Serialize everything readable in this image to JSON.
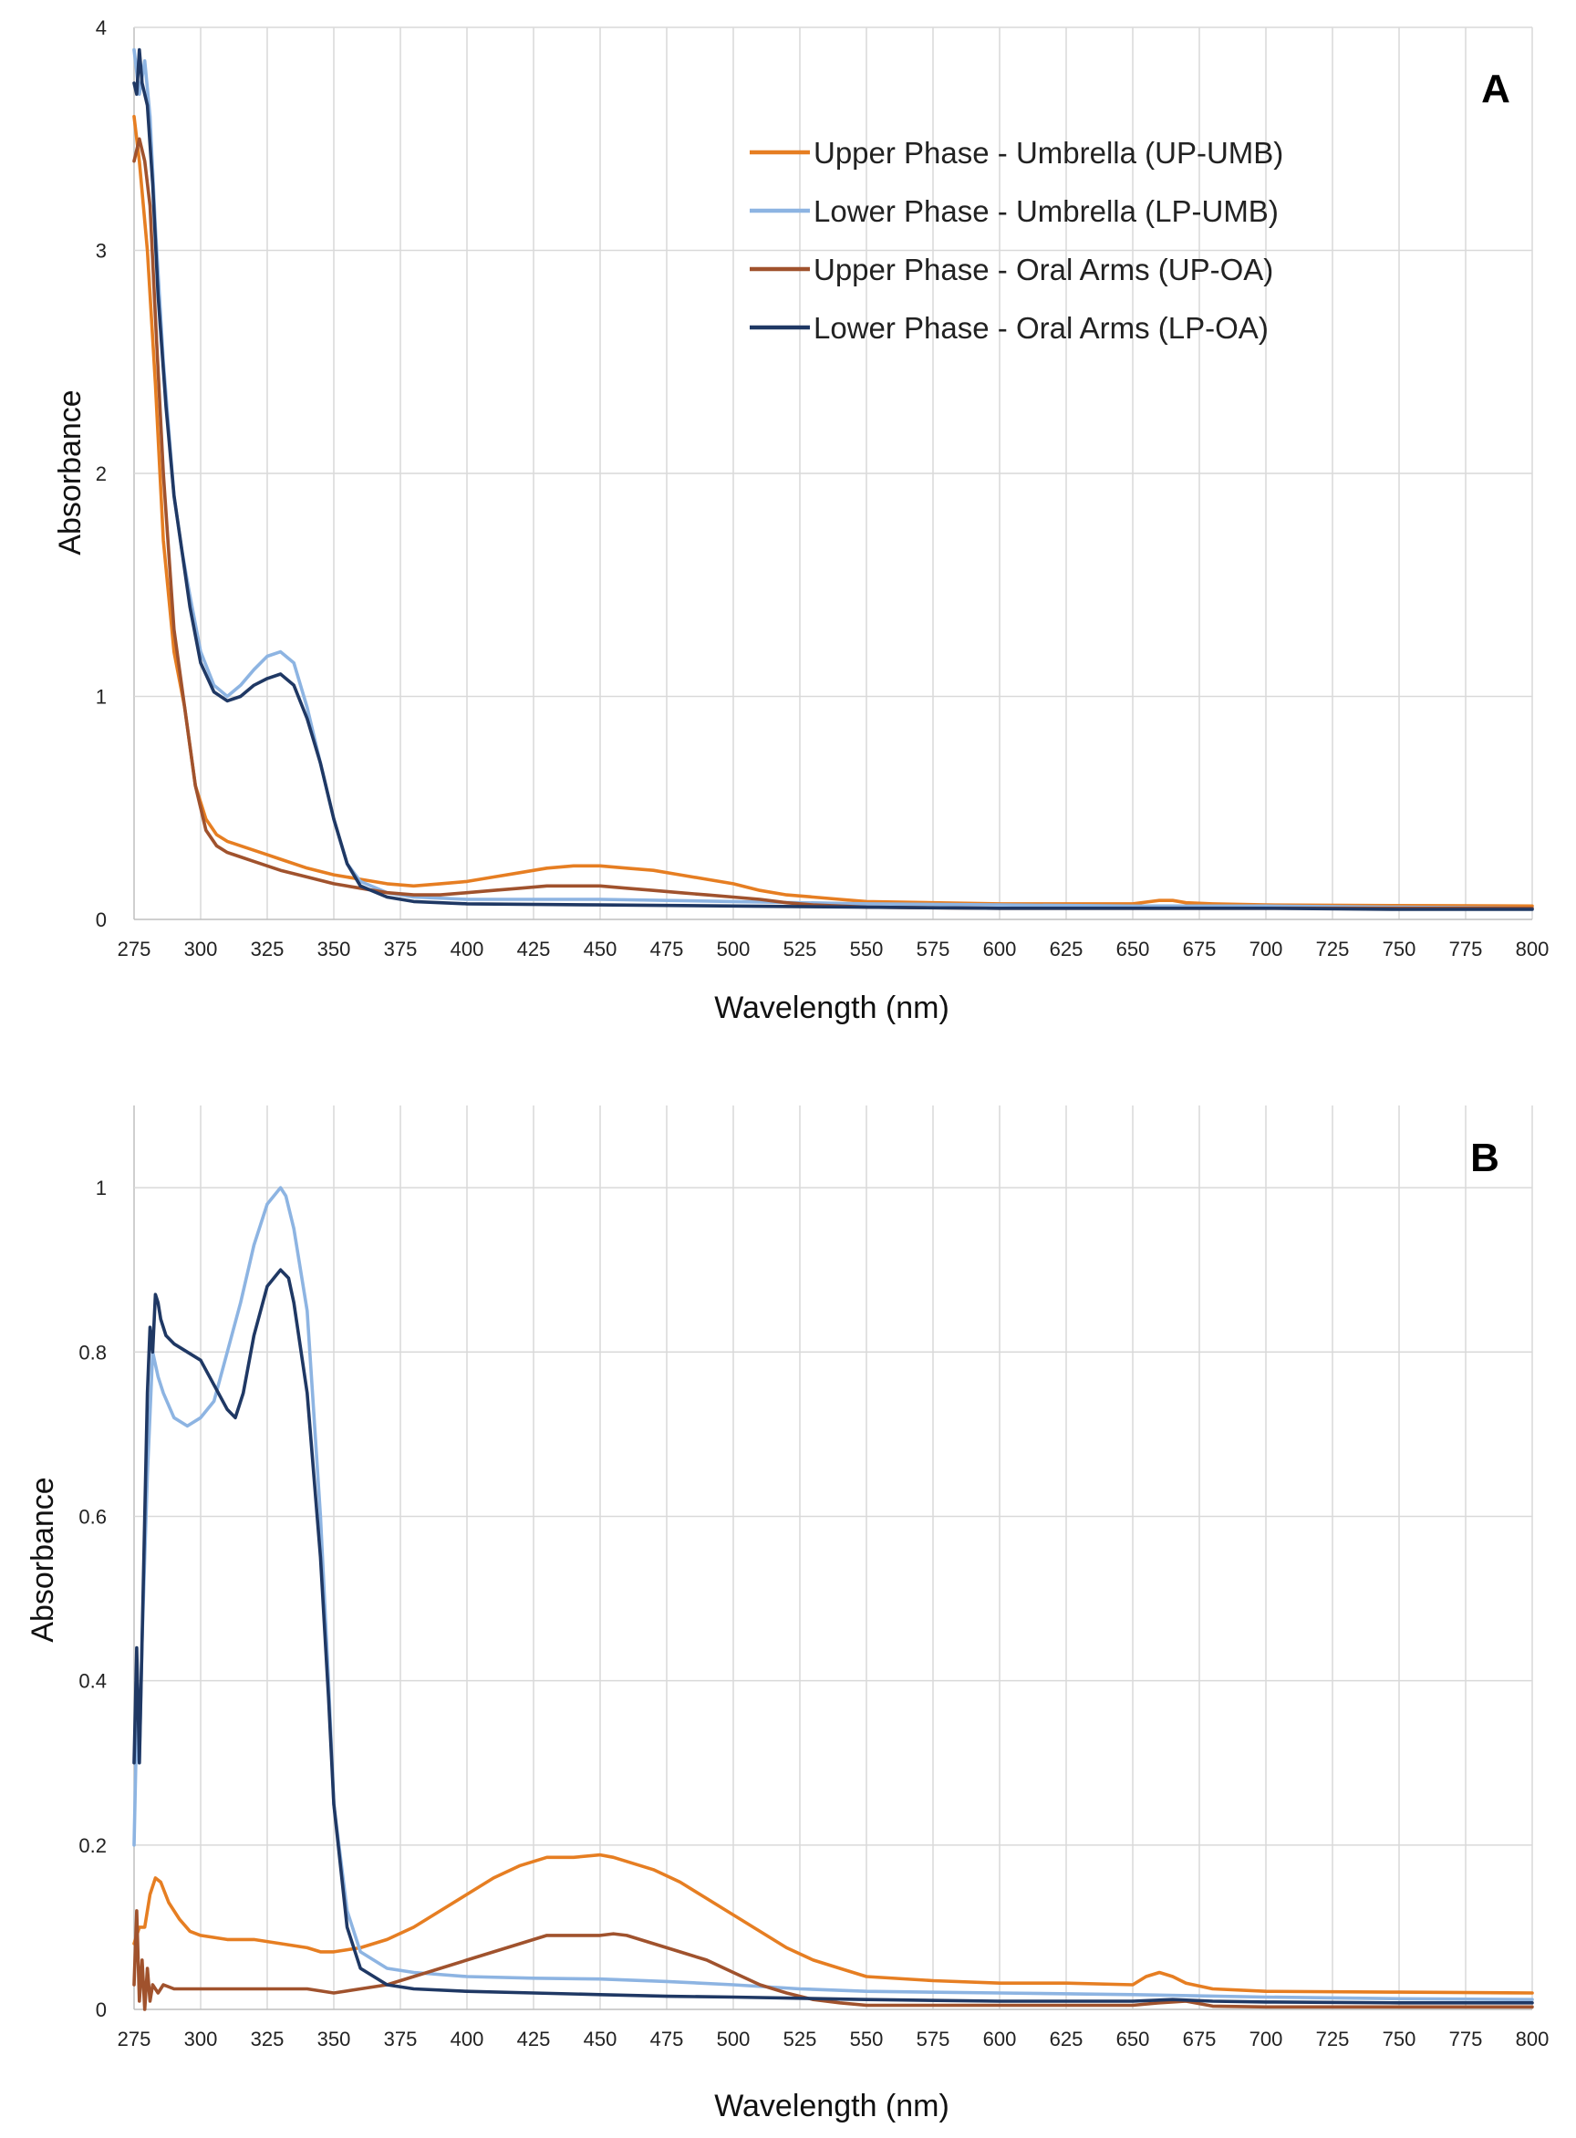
{
  "chart_data": [
    {
      "type": "line",
      "panel_label": "A",
      "xlabel": "Wavelength (nm)",
      "ylabel": "Absorbance",
      "xlim": [
        275,
        800
      ],
      "ylim": [
        0,
        4
      ],
      "xticks": [
        275,
        300,
        325,
        350,
        375,
        400,
        425,
        450,
        475,
        500,
        525,
        550,
        575,
        600,
        625,
        650,
        675,
        700,
        725,
        750,
        775,
        800
      ],
      "yticks": [
        0,
        1,
        2,
        3,
        4
      ],
      "ytick_labels": [
        "0",
        "1",
        "2",
        "3",
        "4"
      ],
      "grid": true,
      "legend_position": "top-right",
      "series": [
        {
          "name": "Upper Phase - Umbrella (UP-UMB)",
          "color": "#E67E22",
          "x": [
            275,
            277,
            280,
            283,
            286,
            290,
            294,
            298,
            302,
            306,
            310,
            315,
            320,
            325,
            330,
            340,
            350,
            360,
            370,
            380,
            390,
            400,
            410,
            420,
            430,
            440,
            450,
            460,
            470,
            480,
            490,
            500,
            510,
            520,
            530,
            540,
            550,
            575,
            600,
            625,
            650,
            660,
            665,
            670,
            680,
            700,
            750,
            800
          ],
          "y": [
            3.6,
            3.4,
            3.0,
            2.4,
            1.7,
            1.2,
            0.95,
            0.6,
            0.45,
            0.38,
            0.35,
            0.33,
            0.31,
            0.29,
            0.27,
            0.23,
            0.2,
            0.18,
            0.16,
            0.15,
            0.16,
            0.17,
            0.19,
            0.21,
            0.23,
            0.24,
            0.24,
            0.23,
            0.22,
            0.2,
            0.18,
            0.16,
            0.13,
            0.11,
            0.1,
            0.09,
            0.08,
            0.075,
            0.07,
            0.07,
            0.07,
            0.085,
            0.085,
            0.075,
            0.07,
            0.065,
            0.062,
            0.06
          ]
        },
        {
          "name": "Lower Phase - Umbrella (LP-UMB)",
          "color": "#8DB4E2",
          "x": [
            275,
            277,
            279,
            281,
            283,
            286,
            290,
            293,
            296,
            300,
            305,
            310,
            315,
            320,
            325,
            330,
            335,
            340,
            345,
            350,
            355,
            360,
            370,
            380,
            400,
            450,
            500,
            550,
            600,
            650,
            700,
            750,
            800
          ],
          "y": [
            3.9,
            3.7,
            3.85,
            3.6,
            3.1,
            2.5,
            1.9,
            1.65,
            1.45,
            1.2,
            1.05,
            1.0,
            1.05,
            1.12,
            1.18,
            1.2,
            1.15,
            0.95,
            0.7,
            0.45,
            0.25,
            0.17,
            0.12,
            0.1,
            0.09,
            0.09,
            0.08,
            0.07,
            0.065,
            0.06,
            0.06,
            0.055,
            0.05
          ]
        },
        {
          "name": "Upper Phase - Oral Arms (UP-OA)",
          "color": "#A0522D",
          "x": [
            275,
            277,
            279,
            281,
            283,
            286,
            290,
            294,
            298,
            302,
            306,
            310,
            315,
            320,
            325,
            330,
            340,
            350,
            360,
            370,
            380,
            390,
            400,
            410,
            420,
            430,
            440,
            450,
            460,
            470,
            480,
            490,
            500,
            510,
            520,
            530,
            550,
            600,
            650,
            700,
            750,
            800
          ],
          "y": [
            3.4,
            3.5,
            3.4,
            3.2,
            2.7,
            2.0,
            1.3,
            0.95,
            0.6,
            0.4,
            0.33,
            0.3,
            0.28,
            0.26,
            0.24,
            0.22,
            0.19,
            0.16,
            0.14,
            0.12,
            0.11,
            0.11,
            0.12,
            0.13,
            0.14,
            0.15,
            0.15,
            0.15,
            0.14,
            0.13,
            0.12,
            0.11,
            0.1,
            0.09,
            0.075,
            0.065,
            0.055,
            0.05,
            0.05,
            0.05,
            0.05,
            0.05
          ]
        },
        {
          "name": "Lower Phase - Oral Arms (LP-OA)",
          "color": "#1F3864",
          "x": [
            275,
            276,
            277,
            278,
            280,
            282,
            284,
            287,
            290,
            293,
            296,
            300,
            305,
            310,
            315,
            320,
            325,
            330,
            335,
            340,
            345,
            350,
            355,
            360,
            370,
            380,
            400,
            450,
            500,
            550,
            600,
            650,
            700,
            750,
            800
          ],
          "y": [
            3.75,
            3.7,
            3.9,
            3.75,
            3.65,
            3.3,
            2.8,
            2.3,
            1.9,
            1.65,
            1.4,
            1.15,
            1.02,
            0.98,
            1.0,
            1.05,
            1.08,
            1.1,
            1.05,
            0.9,
            0.7,
            0.45,
            0.25,
            0.15,
            0.1,
            0.08,
            0.07,
            0.065,
            0.06,
            0.055,
            0.05,
            0.05,
            0.05,
            0.045,
            0.045
          ]
        }
      ]
    },
    {
      "type": "line",
      "panel_label": "B",
      "xlabel": "Wavelength (nm)",
      "ylabel": "Absorbance",
      "xlim": [
        275,
        800
      ],
      "ylim": [
        0,
        1.1
      ],
      "xticks": [
        275,
        300,
        325,
        350,
        375,
        400,
        425,
        450,
        475,
        500,
        525,
        550,
        575,
        600,
        625,
        650,
        675,
        700,
        725,
        750,
        775,
        800
      ],
      "yticks": [
        0,
        0.2,
        0.4,
        0.6,
        0.8,
        1
      ],
      "ytick_labels": [
        "0",
        "0.2",
        "0.4",
        "0.6",
        "0.8",
        "1"
      ],
      "grid": true,
      "series": [
        {
          "name": "Upper Phase - Umbrella (UP-UMB)",
          "color": "#E67E22",
          "x": [
            275,
            277,
            279,
            281,
            283,
            285,
            288,
            292,
            296,
            300,
            310,
            320,
            330,
            340,
            345,
            350,
            360,
            370,
            380,
            390,
            400,
            410,
            420,
            430,
            435,
            440,
            450,
            455,
            460,
            470,
            480,
            490,
            500,
            510,
            520,
            530,
            540,
            550,
            575,
            600,
            625,
            650,
            655,
            660,
            665,
            670,
            680,
            700,
            750,
            800
          ],
          "y": [
            0.08,
            0.1,
            0.1,
            0.14,
            0.16,
            0.155,
            0.13,
            0.11,
            0.095,
            0.09,
            0.085,
            0.085,
            0.08,
            0.075,
            0.07,
            0.07,
            0.075,
            0.085,
            0.1,
            0.12,
            0.14,
            0.16,
            0.175,
            0.185,
            0.185,
            0.185,
            0.188,
            0.185,
            0.18,
            0.17,
            0.155,
            0.135,
            0.115,
            0.095,
            0.075,
            0.06,
            0.05,
            0.04,
            0.035,
            0.032,
            0.032,
            0.03,
            0.04,
            0.045,
            0.04,
            0.032,
            0.025,
            0.022,
            0.021,
            0.02
          ]
        },
        {
          "name": "Lower Phase - Umbrella (LP-UMB)",
          "color": "#8DB4E2",
          "x": [
            275,
            276,
            277,
            278,
            279,
            280,
            282,
            284,
            286,
            290,
            295,
            300,
            305,
            310,
            315,
            320,
            325,
            330,
            332,
            335,
            340,
            345,
            348,
            350,
            355,
            360,
            370,
            380,
            400,
            425,
            450,
            475,
            500,
            525,
            550,
            600,
            650,
            700,
            750,
            800
          ],
          "y": [
            0.2,
            0.35,
            0.3,
            0.45,
            0.55,
            0.65,
            0.8,
            0.77,
            0.75,
            0.72,
            0.71,
            0.72,
            0.74,
            0.8,
            0.86,
            0.93,
            0.98,
            1.0,
            0.99,
            0.95,
            0.85,
            0.6,
            0.4,
            0.25,
            0.12,
            0.07,
            0.05,
            0.045,
            0.04,
            0.038,
            0.037,
            0.034,
            0.03,
            0.025,
            0.022,
            0.02,
            0.018,
            0.015,
            0.013,
            0.012
          ]
        },
        {
          "name": "Upper Phase - Oral Arms (UP-OA)",
          "color": "#A0522D",
          "x": [
            275,
            276,
            277,
            278,
            279,
            280,
            281,
            282,
            284,
            286,
            290,
            300,
            310,
            320,
            330,
            340,
            350,
            360,
            370,
            380,
            390,
            400,
            410,
            420,
            430,
            440,
            450,
            455,
            460,
            470,
            480,
            490,
            500,
            510,
            520,
            530,
            540,
            550,
            575,
            600,
            650,
            660,
            670,
            680,
            700,
            750,
            800
          ],
          "y": [
            0.03,
            0.12,
            0.01,
            0.06,
            0.0,
            0.05,
            0.01,
            0.03,
            0.02,
            0.03,
            0.025,
            0.025,
            0.025,
            0.025,
            0.025,
            0.025,
            0.02,
            0.025,
            0.03,
            0.04,
            0.05,
            0.06,
            0.07,
            0.08,
            0.09,
            0.09,
            0.09,
            0.092,
            0.09,
            0.08,
            0.07,
            0.06,
            0.045,
            0.03,
            0.02,
            0.012,
            0.008,
            0.005,
            0.005,
            0.005,
            0.005,
            0.008,
            0.01,
            0.004,
            0.003,
            0.003,
            0.003
          ]
        },
        {
          "name": "Lower Phase - Oral Arms (LP-OA)",
          "color": "#1F3864",
          "x": [
            275,
            276,
            277,
            278,
            279,
            280,
            281,
            282,
            283,
            284,
            285,
            287,
            290,
            295,
            300,
            305,
            310,
            313,
            316,
            320,
            325,
            330,
            333,
            335,
            340,
            345,
            348,
            350,
            355,
            360,
            370,
            380,
            400,
            425,
            450,
            475,
            500,
            550,
            600,
            650,
            665,
            680,
            700,
            750,
            800
          ],
          "y": [
            0.3,
            0.44,
            0.3,
            0.45,
            0.6,
            0.75,
            0.83,
            0.8,
            0.87,
            0.86,
            0.84,
            0.82,
            0.81,
            0.8,
            0.79,
            0.76,
            0.73,
            0.72,
            0.75,
            0.82,
            0.88,
            0.9,
            0.89,
            0.86,
            0.75,
            0.55,
            0.38,
            0.25,
            0.1,
            0.05,
            0.03,
            0.025,
            0.022,
            0.02,
            0.018,
            0.016,
            0.015,
            0.012,
            0.01,
            0.01,
            0.012,
            0.01,
            0.009,
            0.008,
            0.008
          ]
        }
      ]
    }
  ]
}
